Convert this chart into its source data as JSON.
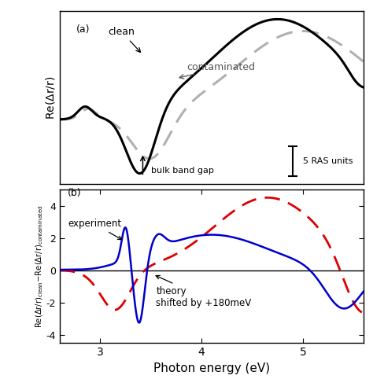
{
  "xmin": 2.6,
  "xmax": 5.6,
  "xlabel": "Photon energy (eV)",
  "label_a": "(a)",
  "label_b": "(b)",
  "clean_label": "clean",
  "contaminated_label": "contaminated",
  "experiment_label": "experiment",
  "theory_label": "theory\nshifted by +180meV",
  "bulk_band_gap_label": "bulk band gap",
  "ras_units_label": "5 RAS units",
  "clean_color": "#000000",
  "contaminated_color": "#b0b0b0",
  "experiment_color": "#0000cc",
  "theory_color": "#dd0000",
  "bg_color": "#ffffff",
  "panel_b_ylim": [
    -4.5,
    5.0
  ],
  "panel_b_yticks": [
    -4,
    -2,
    0,
    2,
    4
  ],
  "xticks": [
    3,
    4,
    5
  ]
}
